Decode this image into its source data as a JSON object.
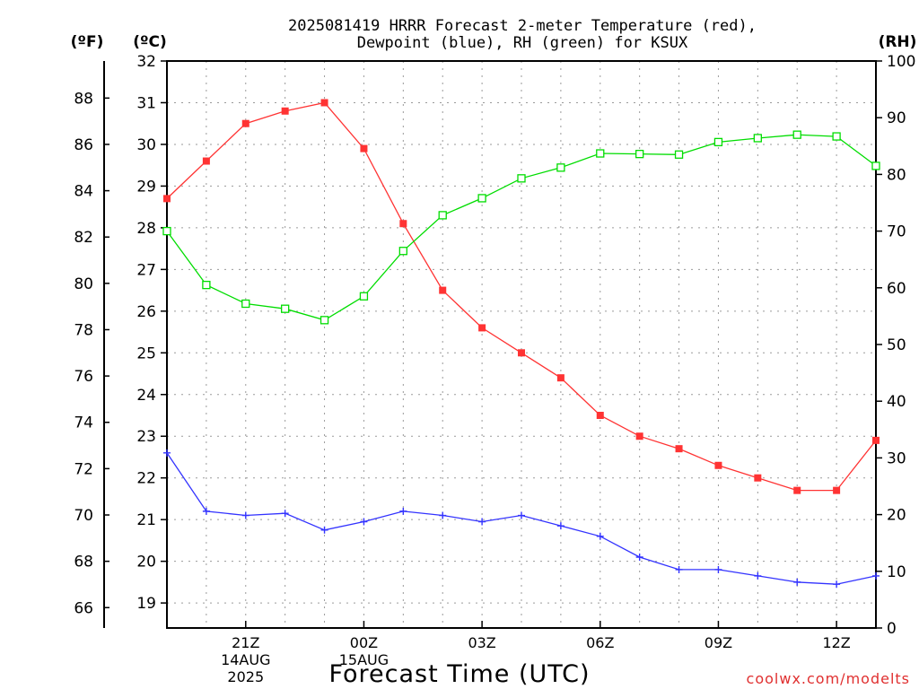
{
  "chart_data": {
    "type": "line",
    "title": "2025081419 HRRR Forecast 2-meter Temperature (red),\nDewpoint (blue), RH (green) for KSUX",
    "xlabel": "Forecast Time (UTC)",
    "y_left_f_label": "(ºF)",
    "y_left_c_label": "(ºC)",
    "y_right_label": "(RH)",
    "credit": "coolwx.com/modelts",
    "x": [
      19,
      20,
      21,
      22,
      23,
      24,
      25,
      26,
      27,
      28,
      29,
      30,
      31,
      32,
      33,
      34,
      35,
      36,
      37
    ],
    "x_range": [
      19,
      37
    ],
    "x_ticks": [
      {
        "x": 21,
        "lines": [
          "21Z",
          "14AUG",
          "2025"
        ]
      },
      {
        "x": 24,
        "lines": [
          "00Z",
          "15AUG"
        ]
      },
      {
        "x": 27,
        "lines": [
          "03Z"
        ]
      },
      {
        "x": 30,
        "lines": [
          "06Z"
        ]
      },
      {
        "x": 33,
        "lines": [
          "09Z"
        ]
      },
      {
        "x": 36,
        "lines": [
          "12Z"
        ]
      }
    ],
    "ylim_c": [
      18.4,
      32
    ],
    "c_ticks": [
      19,
      20,
      21,
      22,
      23,
      24,
      25,
      26,
      27,
      28,
      29,
      30,
      31,
      32
    ],
    "f_ticks": [
      66,
      68,
      70,
      72,
      74,
      76,
      78,
      80,
      82,
      84,
      86,
      88
    ],
    "ylim_rh": [
      0,
      100
    ],
    "rh_ticks": [
      0,
      10,
      20,
      30,
      40,
      50,
      60,
      70,
      80,
      90,
      100
    ],
    "grid": true,
    "series": [
      {
        "name": "Temperature (red)",
        "axis": "c",
        "color": "#ff3333",
        "marker": "filled-square",
        "values": [
          28.7,
          29.6,
          30.5,
          30.8,
          31.0,
          29.9,
          28.1,
          26.5,
          25.6,
          25.0,
          24.4,
          23.5,
          23.0,
          22.7,
          22.3,
          22.0,
          21.7,
          21.7,
          22.9
        ]
      },
      {
        "name": "Dewpoint (blue)",
        "axis": "c",
        "color": "#3333ff",
        "marker": "plus",
        "values": [
          22.6,
          21.2,
          21.1,
          21.15,
          20.75,
          20.95,
          21.2,
          21.1,
          20.95,
          21.1,
          20.85,
          20.6,
          20.1,
          19.8,
          19.8,
          19.65,
          19.5,
          19.45,
          19.65
        ]
      },
      {
        "name": "RH (green)",
        "axis": "rh",
        "color": "#00dd00",
        "marker": "open-square",
        "values": [
          70,
          60.5,
          57.2,
          56.3,
          54.3,
          58.5,
          66.5,
          72.8,
          75.8,
          79.3,
          81.2,
          83.7,
          83.6,
          83.5,
          85.7,
          86.4,
          87.0,
          86.7,
          81.5
        ]
      }
    ]
  }
}
